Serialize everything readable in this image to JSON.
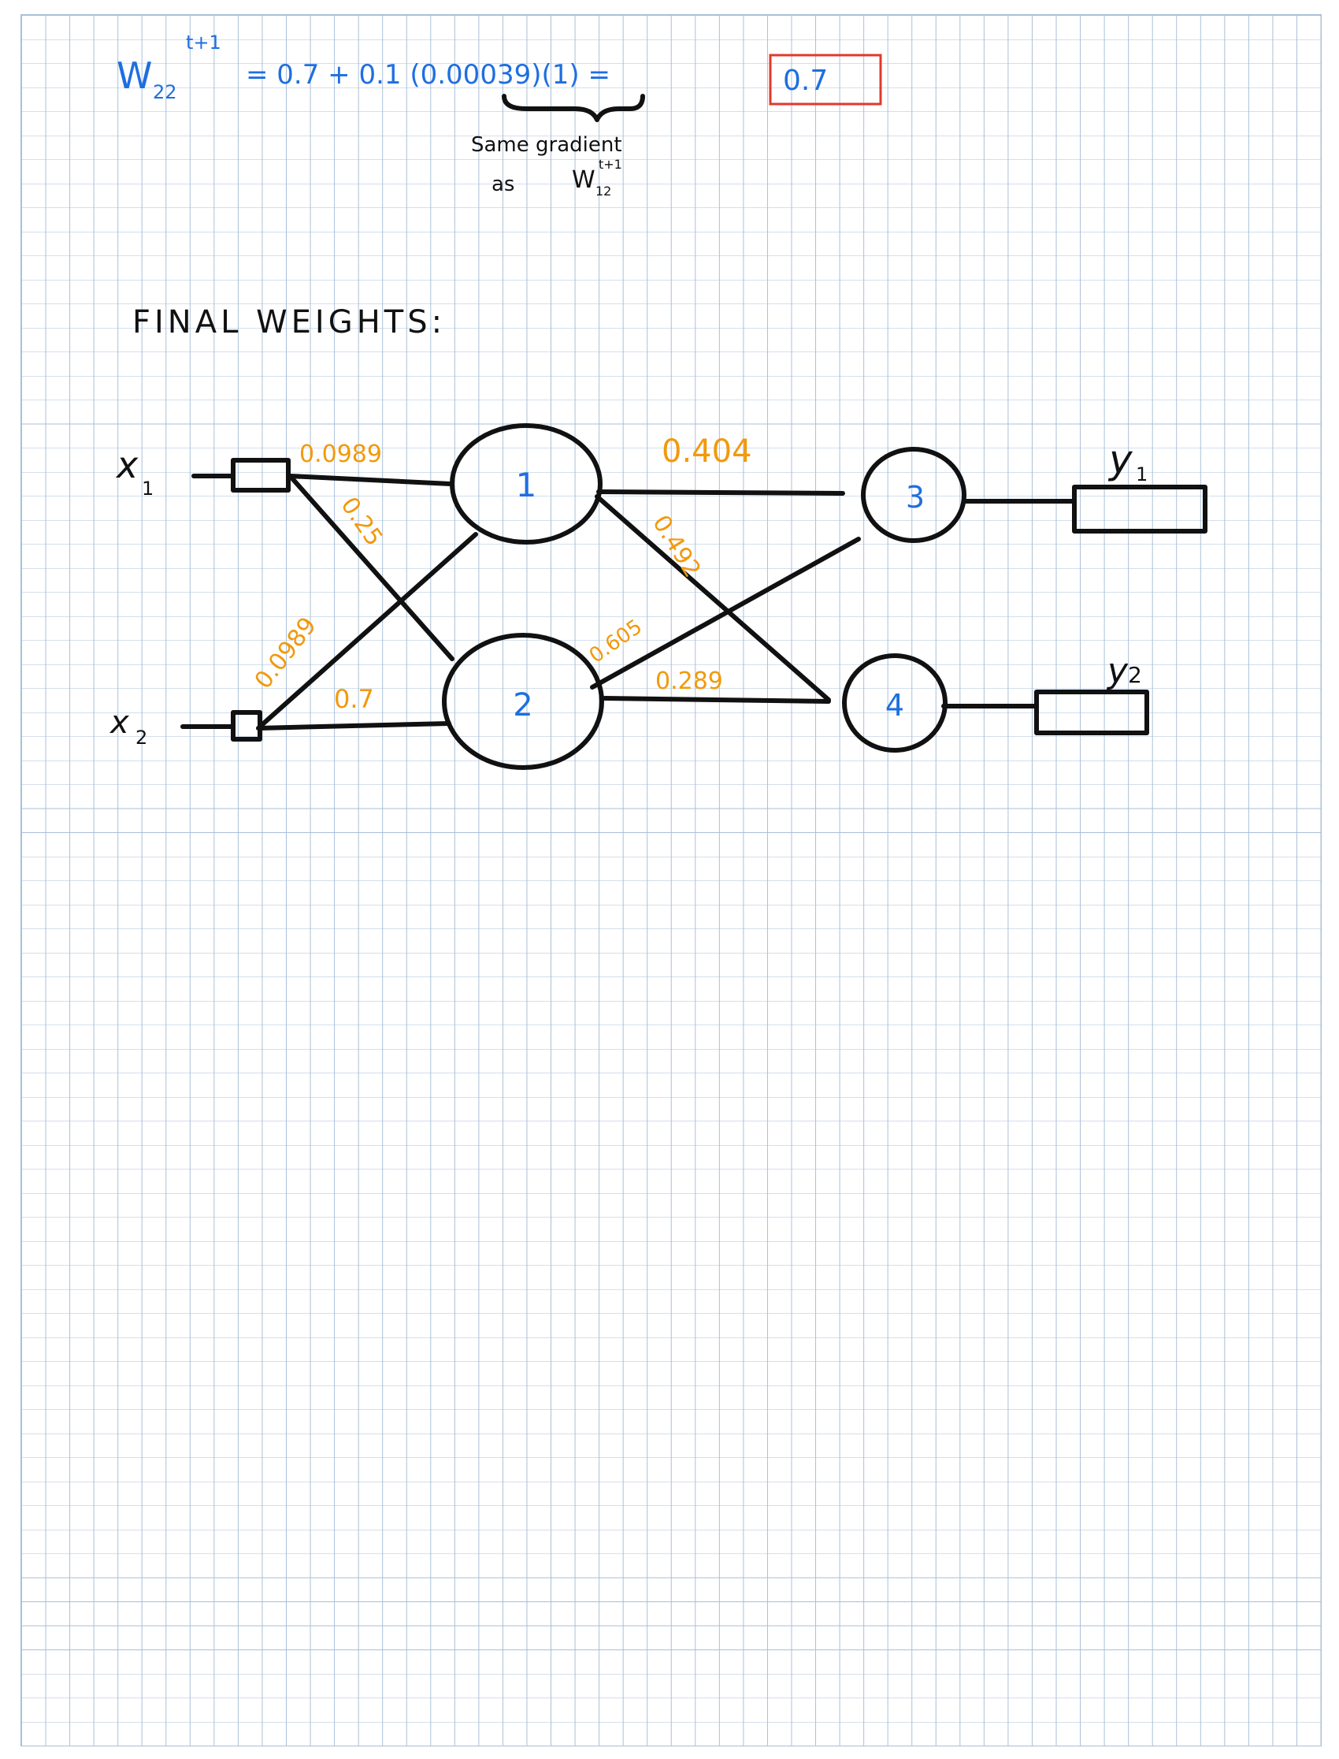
{
  "equation": {
    "lhs_symbol": "W",
    "lhs_subscript": "22",
    "lhs_superscript": "t+1",
    "rhs": "= 0.7 + 0.1 (0.00039)(1) =",
    "result": "0.7",
    "note_line1": "Same gradient",
    "note_line2": "as",
    "note_symbol": "W",
    "note_symbol_subscript": "12",
    "note_symbol_superscript": "t+1"
  },
  "heading": "FINAL WEIGHTS:",
  "network": {
    "inputs": [
      {
        "label": "x",
        "subscript": "1"
      },
      {
        "label": "x",
        "subscript": "2"
      }
    ],
    "hidden_nodes": [
      "1",
      "2"
    ],
    "output_nodes": [
      "3",
      "4"
    ],
    "outputs": [
      {
        "label": "y",
        "subscript": "1"
      },
      {
        "label": "y",
        "subscript": "2"
      }
    ],
    "weights": {
      "x1_to_h1": "0.0989",
      "x1_to_h2": "0.25",
      "x2_to_h1": "0.0989",
      "x2_to_h2": "0.7",
      "h1_to_o3": "0.404",
      "h1_to_o4": "0.492",
      "h2_to_o3": "0.605",
      "h2_to_o4": "0.289"
    }
  },
  "colors": {
    "ink_blue": "#1e6fe0",
    "ink_black": "#111111",
    "ink_orange": "#f2990c",
    "box_red": "#e0392b",
    "grid": "#a9bfd8"
  }
}
